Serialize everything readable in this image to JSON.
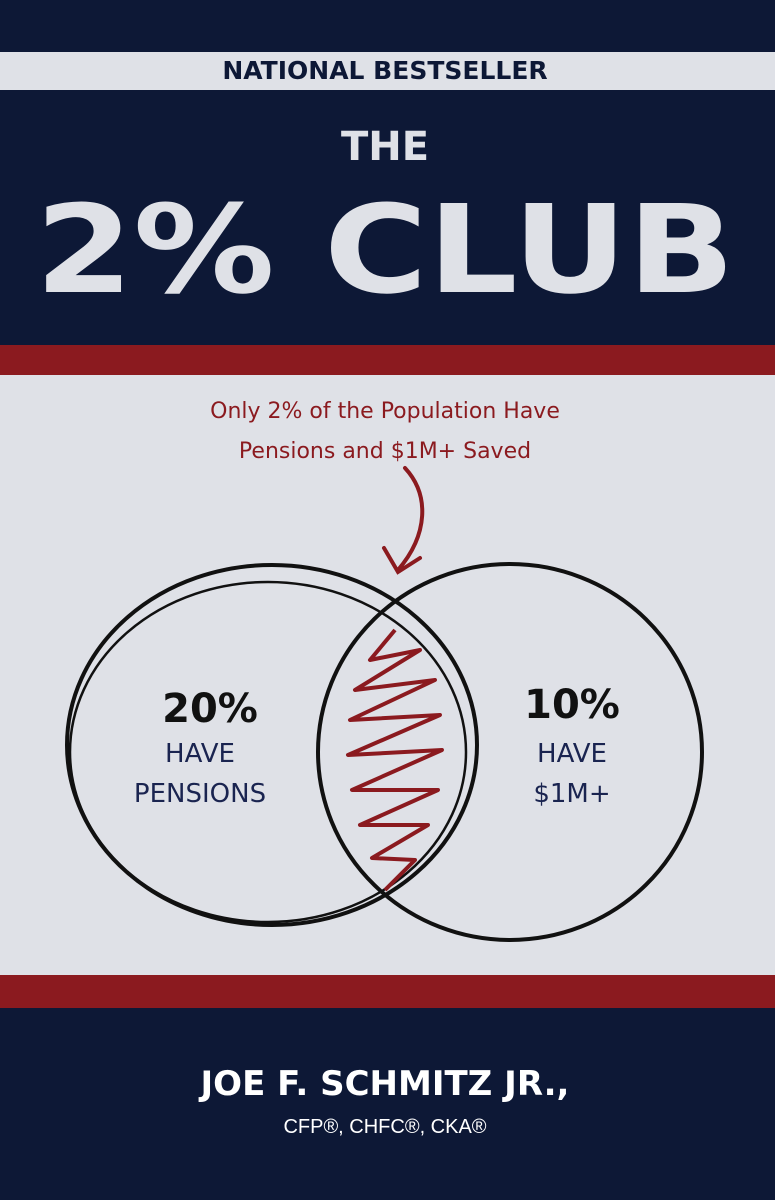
{
  "header": {
    "badge": "NATIONAL BESTSELLER",
    "title_small": "THE",
    "title": "2% CLUB"
  },
  "annotation": {
    "lines": [
      "Only 2% of the Population Have",
      "Pensions and $1M+ Saved"
    ]
  },
  "venn": {
    "left": {
      "percent": "20%",
      "lines": [
        "HAVE",
        "PENSIONS"
      ]
    },
    "right": {
      "percent": "10%",
      "lines": [
        "HAVE",
        "$1M+"
      ]
    }
  },
  "author": {
    "name": "JOE F. SCHMITZ JR.,",
    "credentials": "CFP®, CHFC®, CKA®"
  }
}
